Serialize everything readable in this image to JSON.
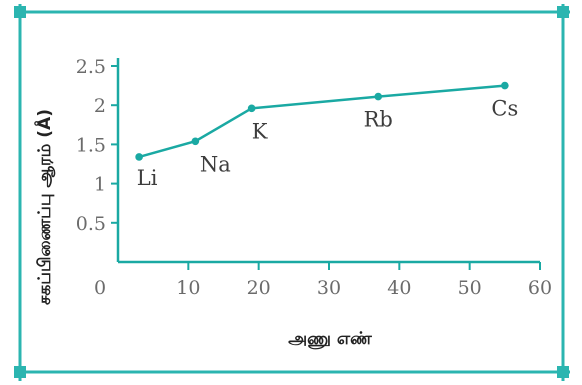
{
  "colors": {
    "frame": "#2bb5b0",
    "series": "#1aa9a3",
    "axis": "#1aa9a3",
    "ticks_text": "#6b6b6b"
  },
  "chart_data": {
    "type": "line",
    "title": "",
    "xlabel": "அணு எண்",
    "ylabel": "சகப்பிணைப்பு ஆரம் (Å)",
    "xlim": [
      0,
      60
    ],
    "ylim": [
      0,
      2.5
    ],
    "x_ticks": [
      0,
      10,
      20,
      30,
      40,
      50,
      60
    ],
    "x_tick_labels": [
      "0",
      "10",
      "20",
      "30",
      "40",
      "50",
      "60"
    ],
    "y_ticks": [
      0.5,
      1,
      1.5,
      2,
      2.5
    ],
    "y_tick_labels": [
      "0.5",
      "1",
      "1.5",
      "2",
      "2.5"
    ],
    "grid": false,
    "series": [
      {
        "points": [
          {
            "label": "Li",
            "x": 3,
            "y": 1.34
          },
          {
            "label": "Na",
            "x": 11,
            "y": 1.54
          },
          {
            "label": "K",
            "x": 19,
            "y": 1.96
          },
          {
            "label": "Rb",
            "x": 37,
            "y": 2.11
          },
          {
            "label": "Cs",
            "x": 55,
            "y": 2.25
          }
        ]
      }
    ]
  }
}
